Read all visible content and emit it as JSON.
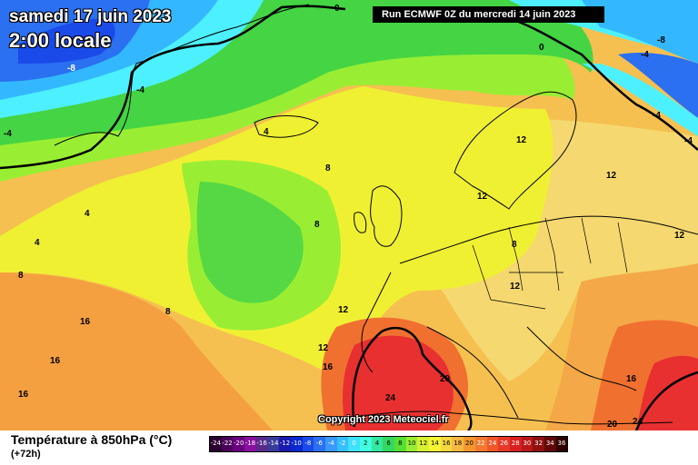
{
  "title": {
    "date": "samedi 17 juin 2023",
    "time": "2:00 locale"
  },
  "run": "Run ECMWF 0Z du mercredi 14 juin 2023",
  "copyright": "Copyright 2023 Meteociel.fr",
  "footer": {
    "variable": "Température à 850hPa (°C)",
    "lead": "(+72h)"
  },
  "colors": {
    "arctic": "#2050e0",
    "cold": "#33b8ff",
    "cyan": "#4df0ff",
    "green": "#44d444",
    "lightgreen": "#99ee33",
    "yellow": "#f0f033",
    "palegold": "#f5e070",
    "orange": "#f5a040",
    "darkorange": "#f07030",
    "red": "#e83030"
  },
  "scale": [
    {
      "value": "-24",
      "color": "#2a0030"
    },
    {
      "value": "-22",
      "color": "#4a0058"
    },
    {
      "value": "-20",
      "color": "#6a0080"
    },
    {
      "value": "-18",
      "color": "#8a10a0"
    },
    {
      "value": "-16",
      "color": "#5a2a8a"
    },
    {
      "value": "-14",
      "color": "#3a3a9a"
    },
    {
      "value": "-12",
      "color": "#1a1ab0"
    },
    {
      "value": "-10",
      "color": "#0a2ad0"
    },
    {
      "value": "-8",
      "color": "#1a4ae8"
    },
    {
      "value": "-6",
      "color": "#2a70f0"
    },
    {
      "value": "-4",
      "color": "#3a98ff"
    },
    {
      "value": "-2",
      "color": "#33c0ff"
    },
    {
      "value": "0",
      "color": "#40e0ff"
    },
    {
      "value": "2",
      "color": "#40ffe0"
    },
    {
      "value": "4",
      "color": "#33e8a0"
    },
    {
      "value": "6",
      "color": "#33d860"
    },
    {
      "value": "8",
      "color": "#55e033"
    },
    {
      "value": "10",
      "color": "#99ee33"
    },
    {
      "value": "12",
      "color": "#d8f033"
    },
    {
      "value": "14",
      "color": "#f5f533"
    },
    {
      "value": "16",
      "color": "#f5d840"
    },
    {
      "value": "18",
      "color": "#f5b840"
    },
    {
      "value": "20",
      "color": "#f59830"
    },
    {
      "value": "22",
      "color": "#f57830"
    },
    {
      "value": "24",
      "color": "#f05828"
    },
    {
      "value": "26",
      "color": "#e83828"
    },
    {
      "value": "28",
      "color": "#d82020"
    },
    {
      "value": "30",
      "color": "#b81818"
    },
    {
      "value": "32",
      "color": "#901010"
    },
    {
      "value": "34",
      "color": "#600808"
    },
    {
      "value": "36",
      "color": "#300000"
    }
  ],
  "isotherm_labels": [
    "0",
    "-8",
    "-4",
    "-4",
    "0",
    "-4",
    "-8",
    "-4",
    "-4",
    "4",
    "4",
    "4",
    "8",
    "8",
    "8",
    "8",
    "8",
    "12",
    "12",
    "12",
    "12",
    "12",
    "12",
    "12",
    "16",
    "16",
    "16",
    "16",
    "16",
    "20",
    "20",
    "24",
    "24"
  ]
}
